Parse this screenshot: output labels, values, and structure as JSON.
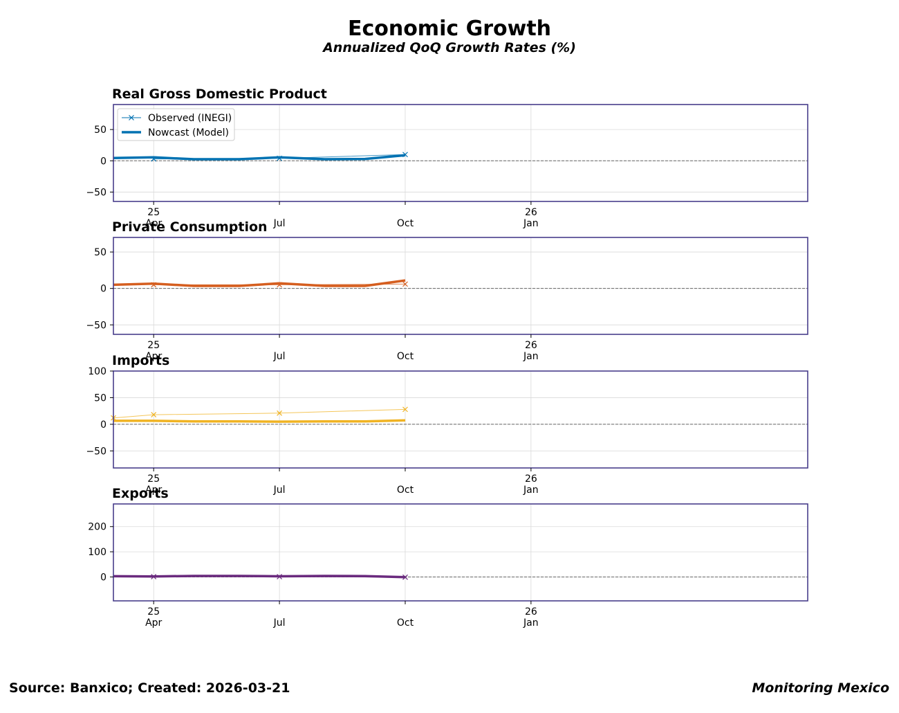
{
  "header": {
    "title": "Economic Growth",
    "subtitle": "Annualized QoQ Growth Rates (%)"
  },
  "footer": {
    "source": "Source: Banxico; Created: 2026-03-21",
    "brand": "Monitoring Mexico"
  },
  "legend": {
    "observed": "Observed (INEGI)",
    "nowcast": "Nowcast (Model)"
  },
  "colors": {
    "frame": "#483d8b",
    "gdp": "#0072b2",
    "consumption": "#d55e1f",
    "imports": "#f0b323",
    "exports": "#6a2a7e",
    "zero_line": "#666666",
    "grid": "#d9d9d9"
  },
  "x_axis": {
    "range_months": [
      2025.22,
      2026.6
    ],
    "ticks": [
      {
        "t": 2025.3,
        "month": "Apr",
        "year": "25"
      },
      {
        "t": 2025.55,
        "month": "Jul",
        "year": ""
      },
      {
        "t": 2025.8,
        "month": "Oct",
        "year": ""
      },
      {
        "t": 2026.05,
        "month": "Jan",
        "year": "26"
      }
    ]
  },
  "chart_data": [
    {
      "type": "line",
      "id": "gdp",
      "title": "Real Gross Domestic Product",
      "ylim": [
        -65,
        90
      ],
      "yticks": [
        -50,
        0,
        50
      ],
      "color_key": "gdp",
      "show_legend": true,
      "observed": {
        "x": [
          2025.3,
          2025.55,
          2025.8
        ],
        "y": [
          3,
          4,
          10
        ]
      },
      "nowcast": {
        "x": [
          2025.22,
          2025.3,
          2025.38,
          2025.47,
          2025.55,
          2025.64,
          2025.72,
          2025.8
        ],
        "y": [
          4.5,
          5.5,
          2.5,
          2.5,
          5.5,
          2.5,
          3.0,
          9.0
        ]
      }
    },
    {
      "type": "line",
      "id": "consumption",
      "title": "Private Consumption",
      "ylim": [
        -63,
        70
      ],
      "yticks": [
        -50,
        0,
        50
      ],
      "color_key": "consumption",
      "show_legend": false,
      "observed": {
        "x": [
          2025.3,
          2025.55,
          2025.8
        ],
        "y": [
          5,
          5,
          6
        ]
      },
      "nowcast": {
        "x": [
          2025.22,
          2025.3,
          2025.38,
          2025.47,
          2025.55,
          2025.64,
          2025.72,
          2025.8
        ],
        "y": [
          5.0,
          6.5,
          3.5,
          3.5,
          7.0,
          3.5,
          3.5,
          11.0
        ]
      }
    },
    {
      "type": "line",
      "id": "imports",
      "title": "Imports",
      "ylim": [
        -82,
        100
      ],
      "yticks": [
        -50,
        0,
        50,
        100
      ],
      "color_key": "imports",
      "show_legend": false,
      "observed": {
        "x": [
          2025.22,
          2025.3,
          2025.55,
          2025.8
        ],
        "y": [
          12,
          18,
          21,
          28
        ]
      },
      "nowcast": {
        "x": [
          2025.22,
          2025.3,
          2025.38,
          2025.47,
          2025.55,
          2025.64,
          2025.72,
          2025.8
        ],
        "y": [
          6.5,
          6.5,
          5.5,
          5.5,
          5.0,
          5.5,
          5.5,
          7.5
        ]
      }
    },
    {
      "type": "line",
      "id": "exports",
      "title": "Exports",
      "ylim": [
        -95,
        290
      ],
      "yticks": [
        0,
        100,
        200
      ],
      "color_key": "exports",
      "show_legend": false,
      "observed": {
        "x": [
          2025.3,
          2025.55,
          2025.8
        ],
        "y": [
          1,
          1,
          -1
        ]
      },
      "nowcast": {
        "x": [
          2025.22,
          2025.3,
          2025.38,
          2025.47,
          2025.55,
          2025.64,
          2025.72,
          2025.8
        ],
        "y": [
          3.0,
          2.0,
          4.0,
          4.0,
          2.5,
          4.0,
          3.5,
          -1.0
        ]
      }
    }
  ]
}
